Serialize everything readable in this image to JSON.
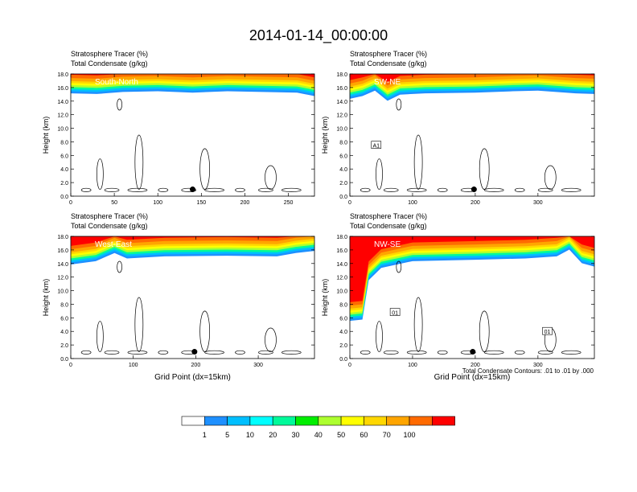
{
  "figure": {
    "title": "2014-01-14_00:00:00",
    "contour_note": "Total Condensate Contours: .01 to .01 by .000"
  },
  "colorbar": {
    "colors": [
      "#ffffff",
      "#1e90ff",
      "#00bfff",
      "#00ffff",
      "#00fa9a",
      "#00ee00",
      "#adff2f",
      "#ffff00",
      "#ffd700",
      "#ffa500",
      "#ff6a00",
      "#ff0000"
    ],
    "labels": [
      "1",
      "5",
      "10",
      "20",
      "30",
      "40",
      "50",
      "60",
      "70",
      "100"
    ]
  },
  "chart_data": [
    {
      "type": "heatmap",
      "panel_label": "South-North",
      "subtitle_1": "Stratosphere Tracer   (%)",
      "subtitle_2": "Total Condensate   (g/kg)",
      "ylabel": "Height (km)",
      "xlabel": "",
      "xlim": [
        0,
        280
      ],
      "ylim": [
        0,
        18
      ],
      "xticks": [
        0,
        50,
        100,
        150,
        200,
        250
      ],
      "yticks": [
        "0.0",
        "2.0",
        "4.0",
        "6.0",
        "8.0",
        "10.0",
        "12.0",
        "14.0",
        "16.0",
        "18.0"
      ],
      "tropopause_km": [
        [
          0,
          15.6
        ],
        [
          30,
          15.5
        ],
        [
          60,
          15.8
        ],
        [
          100,
          15.9
        ],
        [
          140,
          15.7
        ],
        [
          180,
          15.9
        ],
        [
          220,
          15.8
        ],
        [
          260,
          15.7
        ],
        [
          280,
          15.2
        ]
      ],
      "marker": [
        140,
        1.0
      ]
    },
    {
      "type": "heatmap",
      "panel_label": "SW-NE",
      "subtitle_1": "Stratosphere Tracer   (%)",
      "subtitle_2": "Total Condensate   (g/kg)",
      "ylabel": "Height (km)",
      "xlabel": "",
      "xlim": [
        0,
        390
      ],
      "ylim": [
        0,
        18
      ],
      "xticks": [
        0,
        100,
        200,
        300
      ],
      "yticks": [
        "0.0",
        "2.0",
        "4.0",
        "6.0",
        "8.0",
        "10.0",
        "12.0",
        "14.0",
        "16.0",
        "18.0"
      ],
      "tropopause_km": [
        [
          0,
          14.8
        ],
        [
          20,
          15.2
        ],
        [
          40,
          16.0
        ],
        [
          60,
          14.5
        ],
        [
          80,
          15.4
        ],
        [
          120,
          15.6
        ],
        [
          200,
          15.7
        ],
        [
          260,
          15.9
        ],
        [
          300,
          16.0
        ],
        [
          360,
          15.6
        ],
        [
          390,
          15.5
        ]
      ],
      "marker": [
        198,
        1.0
      ],
      "contour_labels": [
        {
          "x": 42,
          "y": 7.5,
          "text": "A1"
        }
      ]
    },
    {
      "type": "heatmap",
      "panel_label": "West-East",
      "subtitle_1": "Stratosphere Tracer   (%)",
      "subtitle_2": "Total Condensate   (g/kg)",
      "ylabel": "Height (km)",
      "xlabel": "Grid Point (dx=15km)",
      "xlim": [
        0,
        390
      ],
      "ylim": [
        0,
        18
      ],
      "xticks": [
        0,
        100,
        200,
        300
      ],
      "yticks": [
        "0.0",
        "2.0",
        "4.0",
        "6.0",
        "8.0",
        "10.0",
        "12.0",
        "14.0",
        "16.0",
        "18.0"
      ],
      "tropopause_km": [
        [
          0,
          14.3
        ],
        [
          40,
          14.8
        ],
        [
          70,
          16.0
        ],
        [
          90,
          15.2
        ],
        [
          150,
          15.5
        ],
        [
          250,
          15.6
        ],
        [
          330,
          15.5
        ],
        [
          360,
          16.0
        ],
        [
          390,
          16.3
        ]
      ],
      "marker": [
        198,
        1.0
      ]
    },
    {
      "type": "heatmap",
      "panel_label": "NW-SE",
      "subtitle_1": "Stratosphere Tracer   (%)",
      "subtitle_2": "Total Condensate   (g/kg)",
      "ylabel": "Height (km)",
      "xlabel": "Grid Point (dx=15km)",
      "xlim": [
        0,
        390
      ],
      "ylim": [
        0,
        18
      ],
      "xticks": [
        0,
        100,
        200,
        300
      ],
      "yticks": [
        "0.0",
        "2.0",
        "4.0",
        "6.0",
        "8.0",
        "10.0",
        "12.0",
        "14.0",
        "16.0",
        "18.0"
      ],
      "tropopause_km": [
        [
          0,
          6.0
        ],
        [
          20,
          6.2
        ],
        [
          30,
          12.0
        ],
        [
          50,
          13.8
        ],
        [
          100,
          14.8
        ],
        [
          200,
          15.0
        ],
        [
          280,
          15.2
        ],
        [
          330,
          15.5
        ],
        [
          350,
          16.5
        ],
        [
          370,
          14.5
        ],
        [
          390,
          14.0
        ]
      ],
      "marker": [
        196,
        1.0
      ],
      "contour_labels": [
        {
          "x": 72,
          "y": 6.8,
          "text": "01"
        },
        {
          "x": 315,
          "y": 4.0,
          "text": "01"
        }
      ]
    }
  ]
}
